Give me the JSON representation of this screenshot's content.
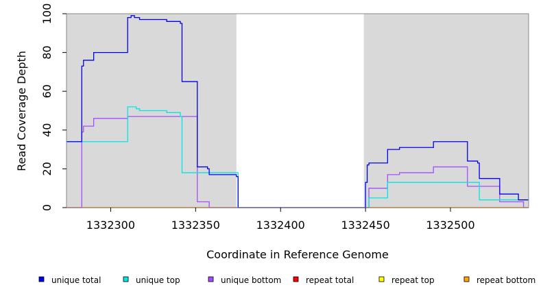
{
  "chart_data": {
    "type": "line",
    "xlabel": "Coordinate in Reference Genome",
    "ylabel": "Read Coverage Depth",
    "xlim": [
      1332274,
      1332546
    ],
    "ylim": [
      0,
      100
    ],
    "xticks": [
      1332300,
      1332350,
      1332400,
      1332450,
      1332500
    ],
    "yticks": [
      0,
      20,
      40,
      60,
      80,
      100
    ],
    "xtick_labels": [
      "1332300",
      "1332350",
      "1332400",
      "1332450",
      "1332500"
    ],
    "ytick_labels": [
      "0",
      "20",
      "40",
      "60",
      "80",
      "100"
    ],
    "shaded_regions": [
      [
        1332274,
        1332374
      ],
      [
        1332449,
        1332546
      ]
    ],
    "legend_position": "bottom",
    "series": [
      {
        "name": "unique total",
        "color": "#0000ee",
        "x": [
          1332274,
          1332283,
          1332284,
          1332290,
          1332310,
          1332312,
          1332314,
          1332317,
          1332333,
          1332341,
          1332342,
          1332351,
          1332357,
          1332358,
          1332374,
          1332375,
          1332450,
          1332451,
          1332452,
          1332463,
          1332470,
          1332490,
          1332510,
          1332516,
          1332517,
          1332529,
          1332540,
          1332546
        ],
        "y": [
          34,
          73,
          76,
          80,
          98,
          99,
          98,
          97,
          96,
          95,
          65,
          21,
          20,
          17,
          16,
          0,
          13,
          22,
          23,
          30,
          31,
          34,
          24,
          23,
          15,
          7,
          4,
          4
        ]
      },
      {
        "name": "unique top",
        "color": "#00e5e5",
        "x": [
          1332274,
          1332310,
          1332315,
          1332317,
          1332333,
          1332341,
          1332342,
          1332357,
          1332374,
          1332375,
          1332450,
          1332452,
          1332463,
          1332517,
          1332529,
          1332546
        ],
        "y": [
          34,
          52,
          51,
          50,
          49,
          47,
          18,
          18,
          18,
          0,
          0,
          5,
          13,
          4,
          4,
          4
        ]
      },
      {
        "name": "unique bottom",
        "color": "#a64dff",
        "x": [
          1332274,
          1332283,
          1332284,
          1332290,
          1332310,
          1332351,
          1332358,
          1332450,
          1332452,
          1332463,
          1332470,
          1332490,
          1332510,
          1332529,
          1332543
        ],
        "y": [
          0,
          39,
          42,
          46,
          47,
          3,
          0,
          0,
          10,
          17,
          18,
          21,
          11,
          3,
          0
        ]
      },
      {
        "name": "repeat total",
        "color": "#ff0000",
        "x": [
          1332274,
          1332546
        ],
        "y": [
          0,
          0
        ]
      },
      {
        "name": "repeat top",
        "color": "#ffff00",
        "x": [
          1332274,
          1332546
        ],
        "y": [
          0,
          0
        ]
      },
      {
        "name": "repeat bottom",
        "color": "#ffa500",
        "x": [
          1332274,
          1332546
        ],
        "y": [
          0,
          0
        ]
      }
    ]
  }
}
